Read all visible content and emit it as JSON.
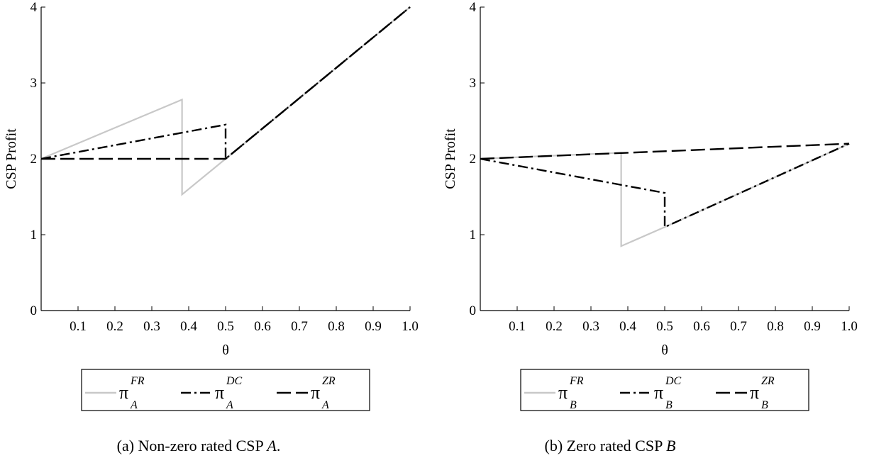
{
  "chart_data": [
    {
      "type": "line",
      "caption": "(a) Non-zero rated CSP A.",
      "caption_parts": {
        "prefix": "(a) Non-zero rated CSP ",
        "italic": "A",
        "suffix": "."
      },
      "xlabel": "θ",
      "ylabel": "CSP Profit",
      "xlim": [
        0,
        1.0
      ],
      "ylim": [
        0,
        4
      ],
      "xticks": [
        "0.1",
        "0.2",
        "0.3",
        "0.4",
        "0.5",
        "0.6",
        "0.7",
        "0.8",
        "0.9",
        "1.0"
      ],
      "yticks": [
        "0",
        "1",
        "2",
        "3",
        "4"
      ],
      "series": [
        {
          "name": "π_A^FR",
          "symbol": "π",
          "sub": "A",
          "sup": "FR",
          "color": "#c8c8c8",
          "dash": "solid",
          "x": [
            0,
            0.382,
            0.382,
            0.5,
            1.0
          ],
          "y": [
            2.0,
            2.78,
            1.53,
            2.0,
            4.0
          ]
        },
        {
          "name": "π_A^DC",
          "symbol": "π",
          "sub": "A",
          "sup": "DC",
          "color": "#000000",
          "dash": "dashdot",
          "x": [
            0,
            0.5,
            0.5,
            1.0
          ],
          "y": [
            2.0,
            2.45,
            2.0,
            4.0
          ]
        },
        {
          "name": "π_A^ZR",
          "symbol": "π",
          "sub": "A",
          "sup": "ZR",
          "color": "#000000",
          "dash": "longdash",
          "x": [
            0,
            0.5,
            1.0
          ],
          "y": [
            2.0,
            2.0,
            4.0
          ]
        }
      ],
      "legend": "bottom"
    },
    {
      "type": "line",
      "caption": "(b) Zero rated CSP B",
      "caption_parts": {
        "prefix": "(b) Zero rated CSP ",
        "italic": "B",
        "suffix": ""
      },
      "xlabel": "θ",
      "ylabel": "CSP Profit",
      "xlim": [
        0,
        1.0
      ],
      "ylim": [
        0,
        4
      ],
      "xticks": [
        "0.1",
        "0.2",
        "0.3",
        "0.4",
        "0.5",
        "0.6",
        "0.7",
        "0.8",
        "0.9",
        "1.0"
      ],
      "yticks": [
        "0",
        "1",
        "2",
        "3",
        "4"
      ],
      "series": [
        {
          "name": "π_B^FR",
          "symbol": "π",
          "sub": "B",
          "sup": "FR",
          "color": "#c8c8c8",
          "dash": "solid",
          "x": [
            0,
            0.382,
            0.382,
            0.5,
            1.0
          ],
          "y": [
            2.0,
            2.08,
            0.85,
            1.1,
            2.2
          ]
        },
        {
          "name": "π_B^DC",
          "symbol": "π",
          "sub": "B",
          "sup": "DC",
          "color": "#000000",
          "dash": "dashdot",
          "x": [
            0,
            0.5,
            0.5,
            1.0
          ],
          "y": [
            2.0,
            1.55,
            1.1,
            2.2
          ]
        },
        {
          "name": "π_B^ZR",
          "symbol": "π",
          "sub": "B",
          "sup": "ZR",
          "color": "#000000",
          "dash": "longdash",
          "x": [
            0,
            1.0
          ],
          "y": [
            2.0,
            2.2
          ]
        }
      ],
      "legend": "bottom"
    }
  ]
}
